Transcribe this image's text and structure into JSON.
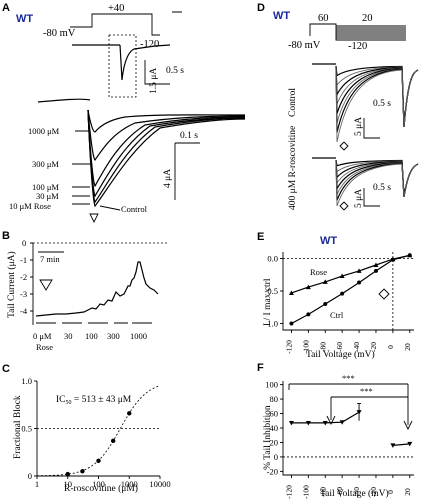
{
  "panel_a": {
    "letter": "A",
    "genotype": "WT",
    "protocol": {
      "step_mv": "+40",
      "hold_mv": "-80 mV",
      "tail_mv": "-120"
    },
    "inset_scale": {
      "current": "1.5 μA",
      "time": "0.5 s"
    },
    "scale": {
      "time": "0.1 s",
      "current": "4 μA"
    },
    "labels": [
      "1000 μM",
      "300 μM",
      "100 μM",
      "30 μM",
      "10 μM Rose"
    ],
    "control_label": "Control"
  },
  "panel_b": {
    "letter": "B",
    "ylabel": "Tail Current (μA)",
    "time_scale": "7 min",
    "conc_labels": [
      "0 μM",
      "30",
      "100",
      "300",
      "1000"
    ],
    "conc_sub": "Rose"
  },
  "panel_c": {
    "letter": "C",
    "ic50_label": "IC",
    "ic50_sub": "50",
    "ic50_value": " = 513 ± 43 μM",
    "xlabel": "R-roscovitine (μM)",
    "ylabel": "Fractional Block"
  },
  "panel_d": {
    "letter": "D",
    "genotype": "WT",
    "protocol": {
      "step1": "60",
      "step2": "20",
      "hold": "-80 mV",
      "bottom": "-120"
    },
    "row1_label": "Control",
    "row2_label": "400 μM R-roscovitine",
    "scale_time": "0.5 s",
    "scale_current": "5 μA"
  },
  "panel_e": {
    "letter": "E",
    "genotype": "WT",
    "ylabel": "I / I max ctrl",
    "xlabel": "Tail Voltage (mV)",
    "series_labels": [
      "Rose",
      "Ctrl"
    ]
  },
  "panel_f": {
    "letter": "F",
    "ylabel": "% Tail Inhibition",
    "xlabel": "Tail Voltage (mV)",
    "sig_labels": [
      "***",
      "***"
    ]
  },
  "chart_data": [
    {
      "panel": "C",
      "type": "scatter",
      "xlabel": "R-roscovitine (μM)",
      "ylabel": "Fractional Block",
      "xscale": "log",
      "xlim": [
        1,
        10000
      ],
      "ylim": [
        0,
        1.0
      ],
      "xticks": [
        1,
        10,
        100,
        1000,
        10000
      ],
      "xtick_labels": [
        "1",
        "10",
        "100",
        "1000",
        "10000"
      ],
      "yticks": [
        0,
        0.5,
        1.0
      ],
      "ytick_labels": [
        "0",
        "0.5",
        "1.0"
      ],
      "reference_line_y": 0.5,
      "x": [
        10,
        30,
        100,
        300,
        1000
      ],
      "y": [
        0.02,
        0.05,
        0.16,
        0.37,
        0.66
      ],
      "fit": {
        "ic50": 513,
        "hill": 1.0
      }
    },
    {
      "panel": "E",
      "type": "line",
      "xlabel": "Tail Voltage (mV)",
      "ylabel": "I / I max ctrl",
      "xlim": [
        -130,
        25
      ],
      "ylim": [
        -1.1,
        0.1
      ],
      "xticks": [
        -120,
        -100,
        -80,
        -60,
        -40,
        -20,
        0,
        20
      ],
      "xtick_labels": [
        "-120",
        "-100",
        "-80",
        "-60",
        "-40",
        "-20",
        "0",
        "20"
      ],
      "yticks": [
        -1.0,
        -0.5,
        0.0
      ],
      "ytick_labels": [
        "-1.0",
        "-0.5",
        "0.0"
      ],
      "series": [
        {
          "name": "Rose",
          "x": [
            -120,
            -100,
            -80,
            -60,
            -40,
            -20,
            0,
            20
          ],
          "y": [
            -0.53,
            -0.44,
            -0.36,
            -0.27,
            -0.19,
            -0.1,
            -0.01,
            0.05
          ]
        },
        {
          "name": "Ctrl",
          "x": [
            -120,
            -100,
            -80,
            -60,
            -40,
            -20,
            0,
            20
          ],
          "y": [
            -1.0,
            -0.86,
            -0.7,
            -0.54,
            -0.37,
            -0.19,
            -0.02,
            0.05
          ]
        }
      ]
    },
    {
      "panel": "F",
      "type": "scatter",
      "xlabel": "Tail Voltage (mV)",
      "ylabel": "% Tail Inhibition",
      "xlim": [
        -130,
        25
      ],
      "ylim": [
        -25,
        105
      ],
      "xticks": [
        -120,
        -100,
        -80,
        -60,
        -40,
        -20,
        0,
        20
      ],
      "xtick_labels": [
        "-120",
        "-100",
        "-80",
        "-60",
        "-40",
        "-20",
        "0",
        "20"
      ],
      "yticks": [
        -20,
        0,
        20,
        40,
        60,
        80,
        100
      ],
      "ytick_labels": [
        "-20",
        "0",
        "20",
        "40",
        "60",
        "80",
        "100"
      ],
      "x": [
        -120,
        -100,
        -80,
        -60,
        -40,
        0,
        20
      ],
      "y": [
        47,
        47,
        47,
        48,
        62,
        16,
        18
      ]
    }
  ]
}
